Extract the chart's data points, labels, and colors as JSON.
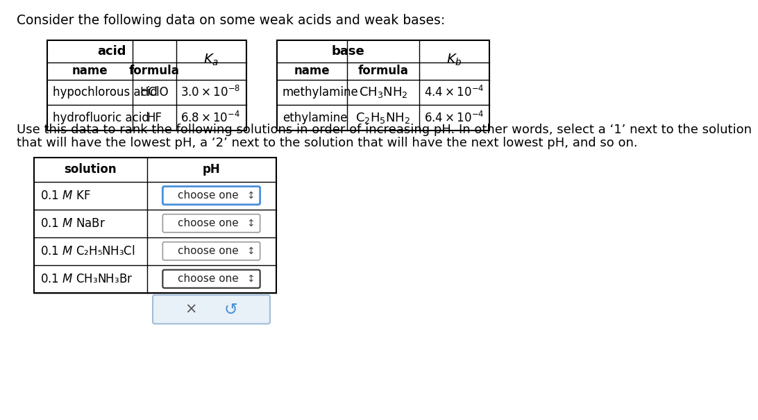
{
  "title": "Consider the following data on some weak acids and weak bases:",
  "instruction_line1": "Use this data to rank the following solutions in order of increasing pH. In other words, select a ‘1’ next to the solution",
  "instruction_line2": "that will have the lowest pH, a ‘2’ next to the solution that will have the next lowest pH, and so on.",
  "acid_header": "acid",
  "acid_col1": "name",
  "acid_col2": "formula",
  "acid_ka_label": "$K_a$",
  "acid_rows": [
    {
      "name": "hypochlorous acid",
      "formula": "HClO",
      "ka": "$3.0 \\times 10^{-8}$"
    },
    {
      "name": "hydrofluoric acid",
      "formula": "HF",
      "ka": "$6.8 \\times 10^{-4}$"
    }
  ],
  "base_header": "base",
  "base_col1": "name",
  "base_col2": "formula",
  "base_kb_label": "$K_b$",
  "base_rows": [
    {
      "name": "methylamine",
      "formula": "$\\mathrm{CH_3NH_2}$",
      "kb": "$4.4 \\times 10^{-4}$"
    },
    {
      "name": "ethylamine",
      "formula": "$\\mathrm{C_2H_5NH_2}$",
      "kb": "$6.4 \\times 10^{-4}$"
    }
  ],
  "sol_col1": "solution",
  "sol_col2": "pH",
  "sol_rows": [
    "0.1 $\\mathit{M}$ KF",
    "0.1 $\\mathit{M}$ NaBr",
    "0.1 $\\mathit{M}$ C₂H₅NH₃Cl",
    "0.1 $\\mathit{M}$ CH₃NH₃Br"
  ],
  "dropdown_text": "choose one  ↕",
  "btn_x_text": "×",
  "btn_r_text": "↺",
  "bg_color": "#ffffff",
  "dd_blue_border": "#4a90d9",
  "dd_gray_border": "#999999",
  "dd_dark_border": "#333333",
  "btn_border": "#a0bcd8",
  "btn_bg": "#e8f0f8"
}
